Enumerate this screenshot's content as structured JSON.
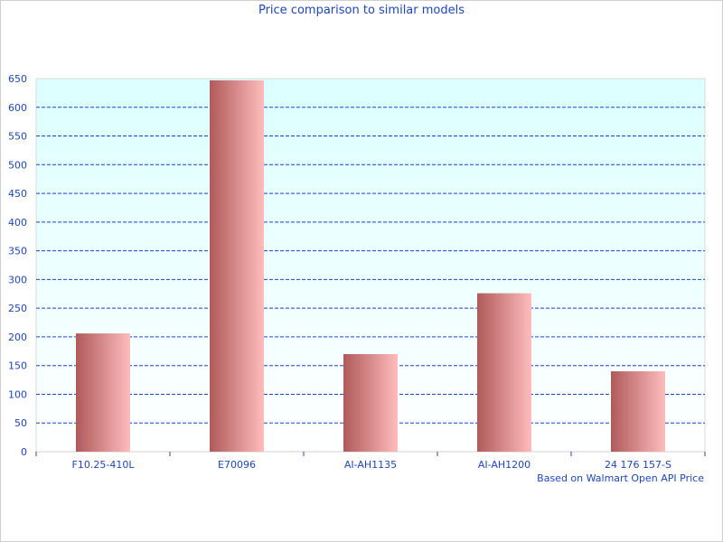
{
  "chart_data": {
    "type": "bar",
    "title": "Price comparison to similar models",
    "categories": [
      "F10.25-410L",
      "E70096",
      "AI-AH1135",
      "AI-AH1200",
      "24 176 157-S"
    ],
    "values": [
      206,
      647,
      170,
      276,
      140
    ],
    "ylim": [
      0,
      650
    ],
    "yticks": [
      0,
      50,
      100,
      150,
      200,
      250,
      300,
      350,
      400,
      450,
      500,
      550,
      600,
      650
    ],
    "xlabel": "",
    "ylabel": "",
    "grid": "horizontal dashed",
    "note": "Based on Walmart Open API Price",
    "colors": {
      "bar_dark": "#b05a5a",
      "bar_light": "#ffbcbc",
      "grid": "#1a46c8",
      "text": "#1a46c8",
      "plot_bg_top": "#dcffff",
      "plot_bg_bottom": "#ffffff"
    }
  }
}
